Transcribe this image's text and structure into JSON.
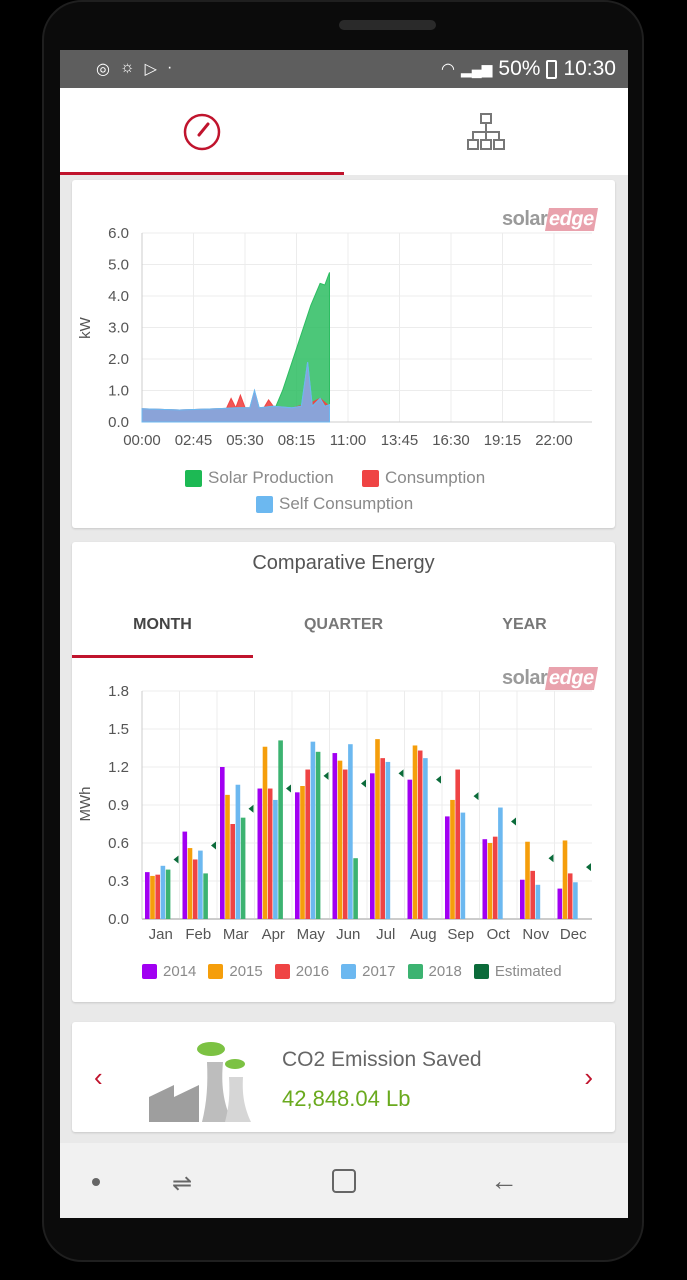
{
  "status_bar": {
    "battery": "50%",
    "time": "10:30",
    "icons": [
      "account-circle-icon",
      "weather-icon",
      "play-store-icon",
      "dot-icon",
      "wifi-icon",
      "signal-icon",
      "battery-icon"
    ]
  },
  "top_tabs": [
    {
      "icon": "dashboard-gauge-icon",
      "active": true
    },
    {
      "icon": "site-layout-tree-icon",
      "active": false
    }
  ],
  "power_card": {
    "logo": "solaredge",
    "y_label": "kW",
    "y_ticks": [
      "6.0",
      "5.0",
      "4.0",
      "3.0",
      "2.0",
      "1.0",
      "0.0"
    ],
    "x_ticks": [
      "00:00",
      "02:45",
      "05:30",
      "08:15",
      "11:00",
      "13:45",
      "16:30",
      "19:15",
      "22:00"
    ],
    "legend": [
      {
        "label": "Solar Production",
        "color": "#1db954"
      },
      {
        "label": "Consumption",
        "color": "#ef4444"
      },
      {
        "label": "Self Consumption",
        "color": "#6cb8f0"
      }
    ]
  },
  "chart_data": [
    {
      "type": "area",
      "ylabel": "kW",
      "ylim": [
        0,
        6
      ],
      "xlim": [
        "00:00",
        "24:00"
      ],
      "grid": true,
      "legend": "bottom",
      "series": [
        {
          "name": "Solar Production",
          "color": "#2dbd62",
          "points": [
            [
              "00:00",
              0
            ],
            [
              "06:40",
              0
            ],
            [
              "07:00",
              0.3
            ],
            [
              "07:30",
              1.0
            ],
            [
              "08:00",
              1.9
            ],
            [
              "08:30",
              2.8
            ],
            [
              "09:00",
              3.7
            ],
            [
              "09:30",
              4.4
            ],
            [
              "09:45",
              4.35
            ],
            [
              "10:00",
              4.75
            ]
          ]
        },
        {
          "name": "Consumption",
          "color": "#ef4444",
          "points": [
            [
              "00:00",
              0.42
            ],
            [
              "01:00",
              0.4
            ],
            [
              "02:00",
              0.38
            ],
            [
              "03:00",
              0.4
            ],
            [
              "04:00",
              0.42
            ],
            [
              "04:30",
              0.43
            ],
            [
              "04:45",
              0.75
            ],
            [
              "05:00",
              0.45
            ],
            [
              "05:15",
              0.85
            ],
            [
              "05:30",
              0.45
            ],
            [
              "06:00",
              0.45
            ],
            [
              "06:30",
              0.45
            ],
            [
              "06:45",
              0.7
            ],
            [
              "07:00",
              0.5
            ],
            [
              "08:00",
              0.45
            ],
            [
              "09:00",
              0.6
            ],
            [
              "09:30",
              0.75
            ],
            [
              "10:00",
              0.5
            ]
          ]
        },
        {
          "name": "Self Consumption",
          "color": "#6cb8f0",
          "points": [
            [
              "00:00",
              0.42
            ],
            [
              "01:00",
              0.4
            ],
            [
              "02:00",
              0.38
            ],
            [
              "03:00",
              0.4
            ],
            [
              "04:00",
              0.42
            ],
            [
              "05:00",
              0.45
            ],
            [
              "05:45",
              0.45
            ],
            [
              "06:00",
              1.0
            ],
            [
              "06:15",
              0.45
            ],
            [
              "07:00",
              0.5
            ],
            [
              "08:00",
              0.45
            ],
            [
              "08:30",
              0.5
            ],
            [
              "08:50",
              1.9
            ],
            [
              "09:05",
              0.5
            ],
            [
              "09:30",
              0.75
            ],
            [
              "09:45",
              0.5
            ],
            [
              "10:00",
              0.55
            ]
          ]
        }
      ]
    },
    {
      "type": "bar",
      "title": "Comparative Energy",
      "ylabel": "MWh",
      "ylim": [
        0,
        1.8
      ],
      "grid": true,
      "legend": "bottom",
      "categories": [
        "Jan",
        "Feb",
        "Mar",
        "Apr",
        "May",
        "Jun",
        "Jul",
        "Aug",
        "Sep",
        "Oct",
        "Nov",
        "Dec"
      ],
      "y_ticks": [
        "1.8",
        "1.5",
        "1.2",
        "0.9",
        "0.6",
        "0.3",
        "0.0"
      ],
      "series": [
        {
          "name": "2014",
          "color": "#a100f2",
          "values": [
            0.37,
            0.69,
            1.2,
            1.03,
            1.0,
            1.31,
            1.15,
            1.1,
            0.81,
            0.63,
            0.31,
            0.24
          ]
        },
        {
          "name": "2015",
          "color": "#f59e0b",
          "values": [
            0.34,
            0.56,
            0.98,
            1.36,
            1.05,
            1.25,
            1.42,
            1.37,
            0.94,
            0.6,
            0.61,
            0.62
          ]
        },
        {
          "name": "2016",
          "color": "#ef4444",
          "values": [
            0.35,
            0.47,
            0.75,
            1.03,
            1.18,
            1.18,
            1.27,
            1.33,
            1.18,
            0.65,
            0.38,
            0.36
          ]
        },
        {
          "name": "2017",
          "color": "#6cb8f0",
          "values": [
            0.42,
            0.54,
            1.06,
            0.94,
            1.4,
            1.38,
            1.24,
            1.27,
            0.84,
            0.88,
            0.27,
            0.29
          ]
        },
        {
          "name": "2018",
          "color": "#3cb371",
          "values": [
            0.39,
            0.36,
            0.8,
            1.41,
            1.32,
            0.48,
            null,
            null,
            null,
            null,
            null,
            null
          ]
        },
        {
          "name": "Estimated",
          "color": "#0b6b3a",
          "values": [
            0.47,
            0.58,
            0.87,
            1.03,
            1.13,
            1.07,
            1.15,
            1.1,
            0.97,
            0.77,
            0.48,
            0.41
          ]
        }
      ]
    }
  ],
  "energy_card": {
    "title": "Comparative Energy",
    "tabs": [
      "MONTH",
      "QUARTER",
      "YEAR"
    ],
    "active_tab": "MONTH",
    "logo": "solaredge",
    "y_label": "MWh"
  },
  "co2_card": {
    "title": "CO2 Emission Saved",
    "value": "42,848.04 Lb",
    "value_color": "#6aaa1e",
    "prev_icon": "chevron-left-icon",
    "next_icon": "chevron-right-icon"
  },
  "accent": "#c0142d",
  "nav_bar": [
    "dot-button",
    "recent-apps-icon",
    "home-icon",
    "back-icon"
  ]
}
